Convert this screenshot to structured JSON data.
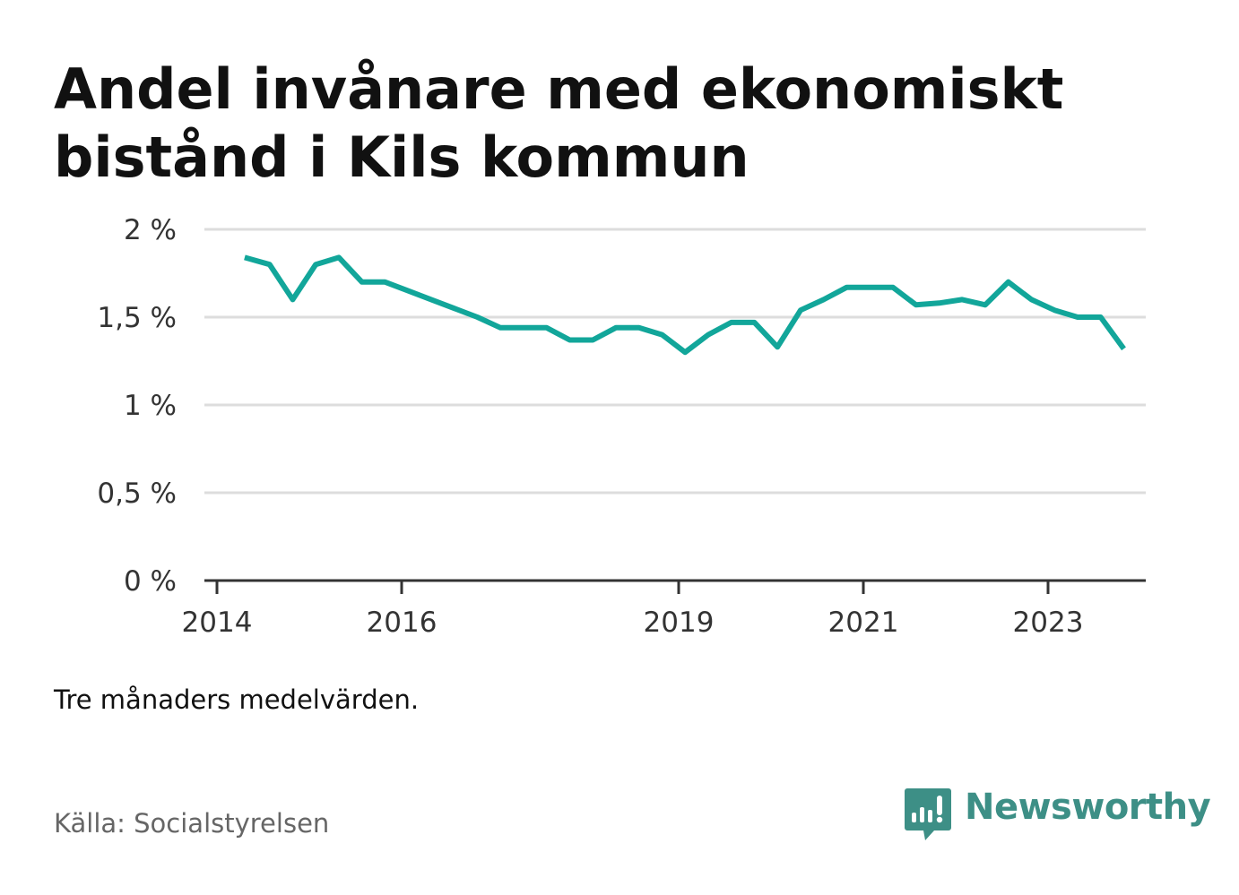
{
  "title": "Andel invånare med ekonomiskt bistånd i Kils kommun",
  "note": "Tre månaders medelvärden.",
  "source": "Källa: Socialstyrelsen",
  "brand": {
    "name": "Newsworthy",
    "icon": "newsworthy-logo-icon",
    "color": "#3d8f86"
  },
  "chart_data": {
    "type": "line",
    "line_color": "#12a69a",
    "grid": true,
    "ylim": [
      0,
      2
    ],
    "y_ticks": [
      {
        "value": 0,
        "label": "0 %"
      },
      {
        "value": 0.5,
        "label": "0,5 %"
      },
      {
        "value": 1,
        "label": "1 %"
      },
      {
        "value": 1.5,
        "label": "1,5 %"
      },
      {
        "value": 2,
        "label": "2 %"
      }
    ],
    "xlim": [
      2014.0,
      2024.0
    ],
    "x_ticks": [
      {
        "value": 2014,
        "label": "2014"
      },
      {
        "value": 2016,
        "label": "2016"
      },
      {
        "value": 2019,
        "label": "2019"
      },
      {
        "value": 2021,
        "label": "2021"
      },
      {
        "value": 2023,
        "label": "2023"
      }
    ],
    "series": [
      {
        "values": [
          [
            2014.3,
            1.84
          ],
          [
            2014.57,
            1.8
          ],
          [
            2014.82,
            1.6
          ],
          [
            2015.07,
            1.8
          ],
          [
            2015.32,
            1.84
          ],
          [
            2015.57,
            1.7
          ],
          [
            2015.82,
            1.7
          ],
          [
            2016.07,
            1.65
          ],
          [
            2016.32,
            1.6
          ],
          [
            2016.57,
            1.55
          ],
          [
            2016.82,
            1.5
          ],
          [
            2017.07,
            1.44
          ],
          [
            2017.32,
            1.44
          ],
          [
            2017.57,
            1.44
          ],
          [
            2017.82,
            1.37
          ],
          [
            2018.07,
            1.37
          ],
          [
            2018.32,
            1.44
          ],
          [
            2018.57,
            1.44
          ],
          [
            2018.82,
            1.4
          ],
          [
            2019.07,
            1.3
          ],
          [
            2019.32,
            1.4
          ],
          [
            2019.57,
            1.47
          ],
          [
            2019.82,
            1.47
          ],
          [
            2020.07,
            1.33
          ],
          [
            2020.32,
            1.54
          ],
          [
            2020.57,
            1.6
          ],
          [
            2020.82,
            1.67
          ],
          [
            2021.07,
            1.67
          ],
          [
            2021.32,
            1.67
          ],
          [
            2021.57,
            1.57
          ],
          [
            2021.82,
            1.58
          ],
          [
            2022.07,
            1.6
          ],
          [
            2022.32,
            1.57
          ],
          [
            2022.57,
            1.7
          ],
          [
            2022.82,
            1.6
          ],
          [
            2023.07,
            1.54
          ],
          [
            2023.32,
            1.5
          ],
          [
            2023.57,
            1.5
          ],
          [
            2023.82,
            1.32
          ]
        ]
      }
    ]
  }
}
